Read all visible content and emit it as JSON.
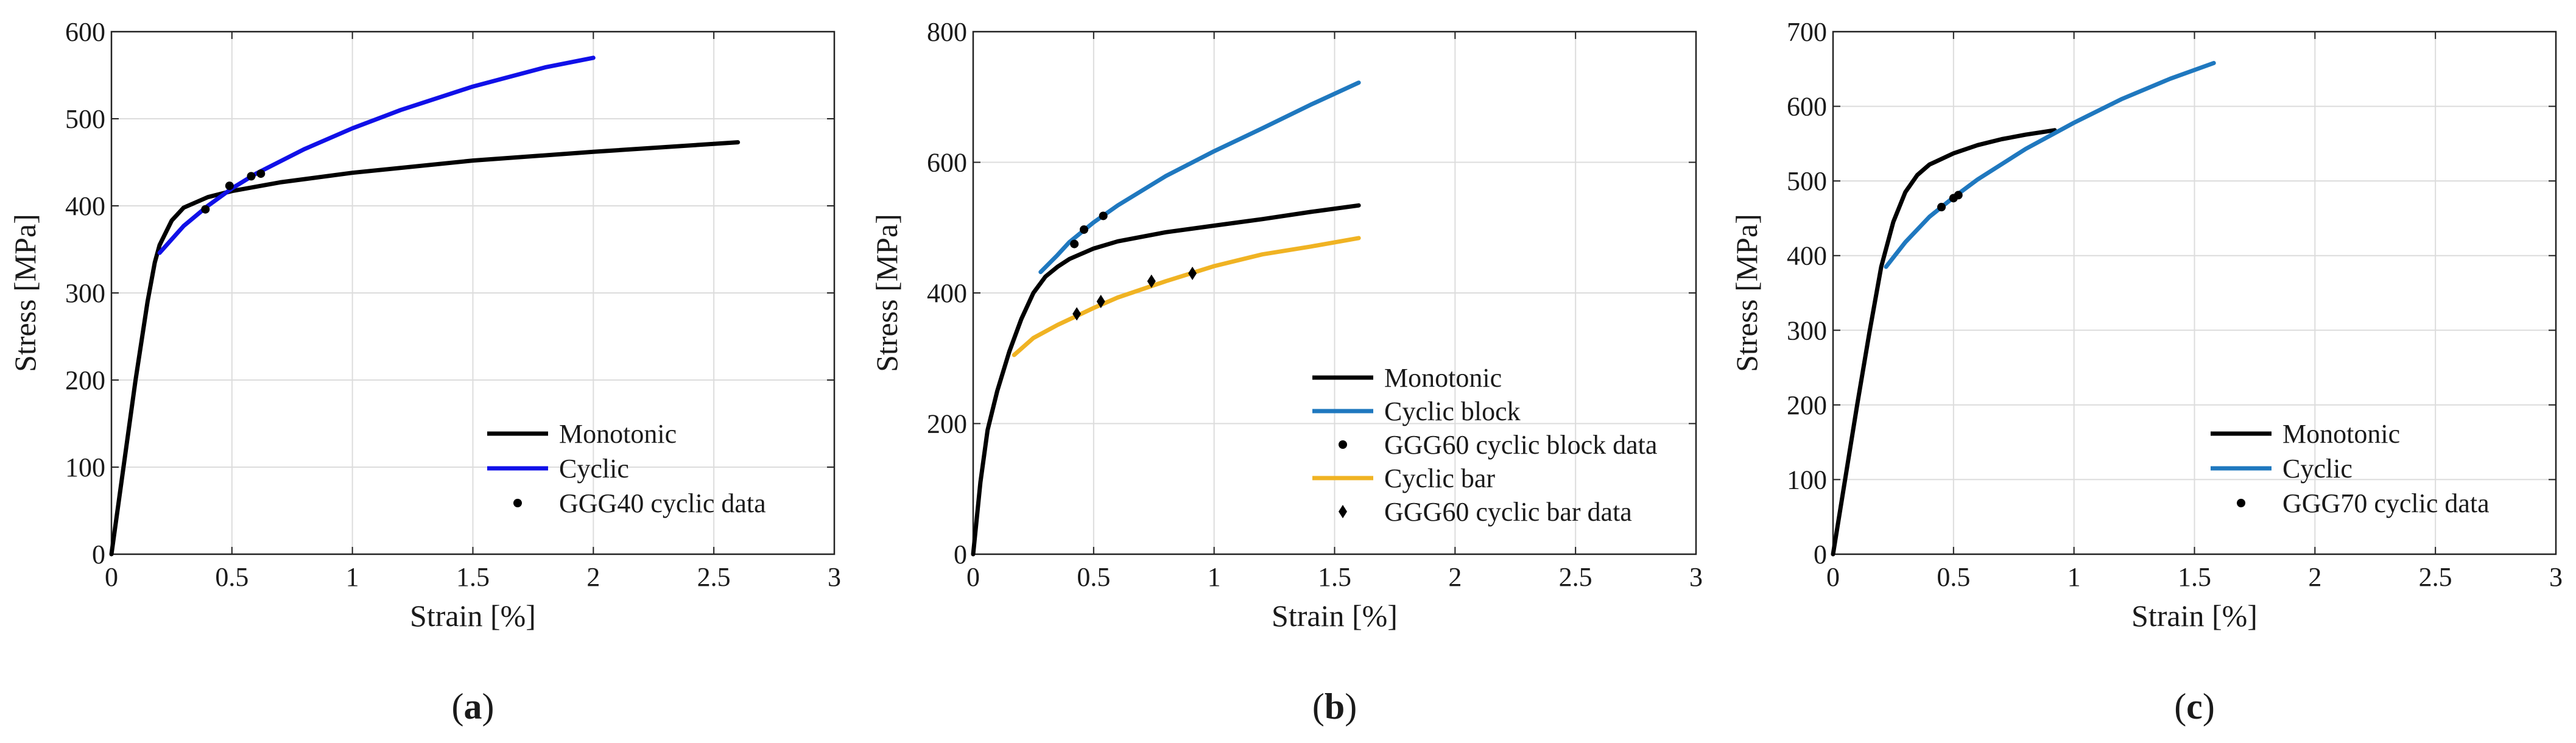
{
  "colors": {
    "monotonic": "#000000",
    "cyclic_blue": "#1010e8",
    "cyclic_block": "#1f78bf",
    "cyclic_bar": "#f0b323",
    "grid": "#dcdcdc",
    "axes": "#222222"
  },
  "chart_data": [
    {
      "type": "line",
      "panel_label": "a",
      "xlabel": "Strain [%]",
      "ylabel": "Stress [MPa]",
      "xlim": [
        0,
        3
      ],
      "ylim": [
        0,
        600
      ],
      "xticks": [
        0,
        0.5,
        1,
        1.5,
        2,
        2.5,
        3
      ],
      "xtick_labels": [
        "0",
        "0.5",
        "1",
        "1.5",
        "2",
        "2.5",
        "3"
      ],
      "yticks": [
        0,
        100,
        200,
        300,
        400,
        500,
        600
      ],
      "ytick_labels": [
        "0",
        "100",
        "200",
        "300",
        "400",
        "500",
        "600"
      ],
      "grid": true,
      "legend_position": "bottom-right",
      "series": [
        {
          "name": "Monotonic",
          "kind": "line",
          "color": "#000000",
          "x": [
            0,
            0.05,
            0.1,
            0.15,
            0.18,
            0.2,
            0.25,
            0.3,
            0.4,
            0.5,
            0.7,
            1.0,
            1.5,
            2.0,
            2.6
          ],
          "y": [
            0,
            100,
            200,
            290,
            335,
            355,
            383,
            398,
            410,
            417,
            427,
            438,
            452,
            462,
            473
          ]
        },
        {
          "name": "Cyclic",
          "kind": "line",
          "color": "#1010e8",
          "x": [
            0.2,
            0.3,
            0.4,
            0.5,
            0.6,
            0.8,
            1.0,
            1.2,
            1.5,
            1.8,
            2.0
          ],
          "y": [
            346,
            377,
            400,
            420,
            437,
            465,
            489,
            510,
            537,
            559,
            570
          ]
        },
        {
          "name": "GGG40 cyclic data",
          "kind": "points",
          "marker": "dot",
          "color": "#000000",
          "x": [
            0.39,
            0.49,
            0.58,
            0.62
          ],
          "y": [
            396,
            423,
            434,
            437
          ]
        }
      ]
    },
    {
      "type": "line",
      "panel_label": "b",
      "xlabel": "Strain [%]",
      "ylabel": "Stress [MPa]",
      "xlim": [
        0,
        3
      ],
      "ylim": [
        0,
        800
      ],
      "xticks": [
        0,
        0.5,
        1,
        1.5,
        2,
        2.5,
        3
      ],
      "xtick_labels": [
        "0",
        "0.5",
        "1",
        "1.5",
        "2",
        "2.5",
        "3"
      ],
      "yticks": [
        0,
        200,
        400,
        600,
        800
      ],
      "ytick_labels": [
        "0",
        "200",
        "400",
        "600",
        "800"
      ],
      "grid": true,
      "legend_position": "bottom-right",
      "series": [
        {
          "name": "Monotonic",
          "kind": "line",
          "color": "#000000",
          "x": [
            0,
            0.03,
            0.06,
            0.1,
            0.15,
            0.2,
            0.25,
            0.3,
            0.35,
            0.4,
            0.5,
            0.6,
            0.8,
            1.0,
            1.2,
            1.4,
            1.6
          ],
          "y": [
            0,
            110,
            190,
            250,
            310,
            360,
            400,
            425,
            440,
            452,
            468,
            479,
            493,
            503,
            513,
            524,
            534
          ]
        },
        {
          "name": "Cyclic block",
          "kind": "line",
          "color": "#1f78bf",
          "x": [
            0.28,
            0.35,
            0.4,
            0.5,
            0.6,
            0.8,
            1.0,
            1.2,
            1.4,
            1.6
          ],
          "y": [
            432,
            458,
            478,
            508,
            534,
            579,
            617,
            652,
            688,
            722
          ]
        },
        {
          "name": "GGG60 cyclic block data",
          "kind": "points",
          "marker": "dot",
          "color": "#000000",
          "x": [
            0.42,
            0.46,
            0.54
          ],
          "y": [
            475,
            497,
            518
          ]
        },
        {
          "name": "Cyclic bar",
          "kind": "line",
          "color": "#f0b323",
          "x": [
            0.17,
            0.25,
            0.35,
            0.5,
            0.6,
            0.8,
            1.0,
            1.2,
            1.4,
            1.6
          ],
          "y": [
            305,
            331,
            351,
            377,
            393,
            418,
            441,
            459,
            471,
            484
          ]
        },
        {
          "name": "GGG60 cyclic bar data",
          "kind": "points",
          "marker": "diamond",
          "color": "#000000",
          "x": [
            0.43,
            0.53,
            0.74,
            0.91
          ],
          "y": [
            368,
            387,
            418,
            430
          ]
        }
      ]
    },
    {
      "type": "line",
      "panel_label": "c",
      "xlabel": "Strain [%]",
      "ylabel": "Stress [MPa]",
      "xlim": [
        0,
        3
      ],
      "ylim": [
        0,
        700
      ],
      "xticks": [
        0,
        0.5,
        1,
        1.5,
        2,
        2.5,
        3
      ],
      "xtick_labels": [
        "0",
        "0.5",
        "1",
        "1.5",
        "2",
        "2.5",
        "3"
      ],
      "yticks": [
        0,
        100,
        200,
        300,
        400,
        500,
        600,
        700
      ],
      "ytick_labels": [
        "0",
        "100",
        "200",
        "300",
        "400",
        "500",
        "600",
        "700"
      ],
      "grid": true,
      "legend_position": "bottom-right",
      "series": [
        {
          "name": "Monotonic",
          "kind": "line",
          "color": "#000000",
          "x": [
            0,
            0.05,
            0.1,
            0.15,
            0.2,
            0.25,
            0.3,
            0.35,
            0.4,
            0.5,
            0.6,
            0.7,
            0.8,
            0.92
          ],
          "y": [
            0,
            100,
            200,
            295,
            385,
            445,
            485,
            508,
            522,
            537,
            548,
            556,
            562,
            568
          ]
        },
        {
          "name": "Cyclic",
          "kind": "line",
          "color": "#1f78bf",
          "x": [
            0.22,
            0.3,
            0.4,
            0.5,
            0.6,
            0.8,
            1.0,
            1.2,
            1.4,
            1.58
          ],
          "y": [
            385,
            418,
            452,
            478,
            502,
            543,
            578,
            610,
            637,
            658
          ]
        },
        {
          "name": "GGG70 cyclic data",
          "kind": "points",
          "marker": "dot",
          "color": "#000000",
          "x": [
            0.45,
            0.5,
            0.52
          ],
          "y": [
            465,
            477,
            481
          ]
        }
      ]
    }
  ]
}
